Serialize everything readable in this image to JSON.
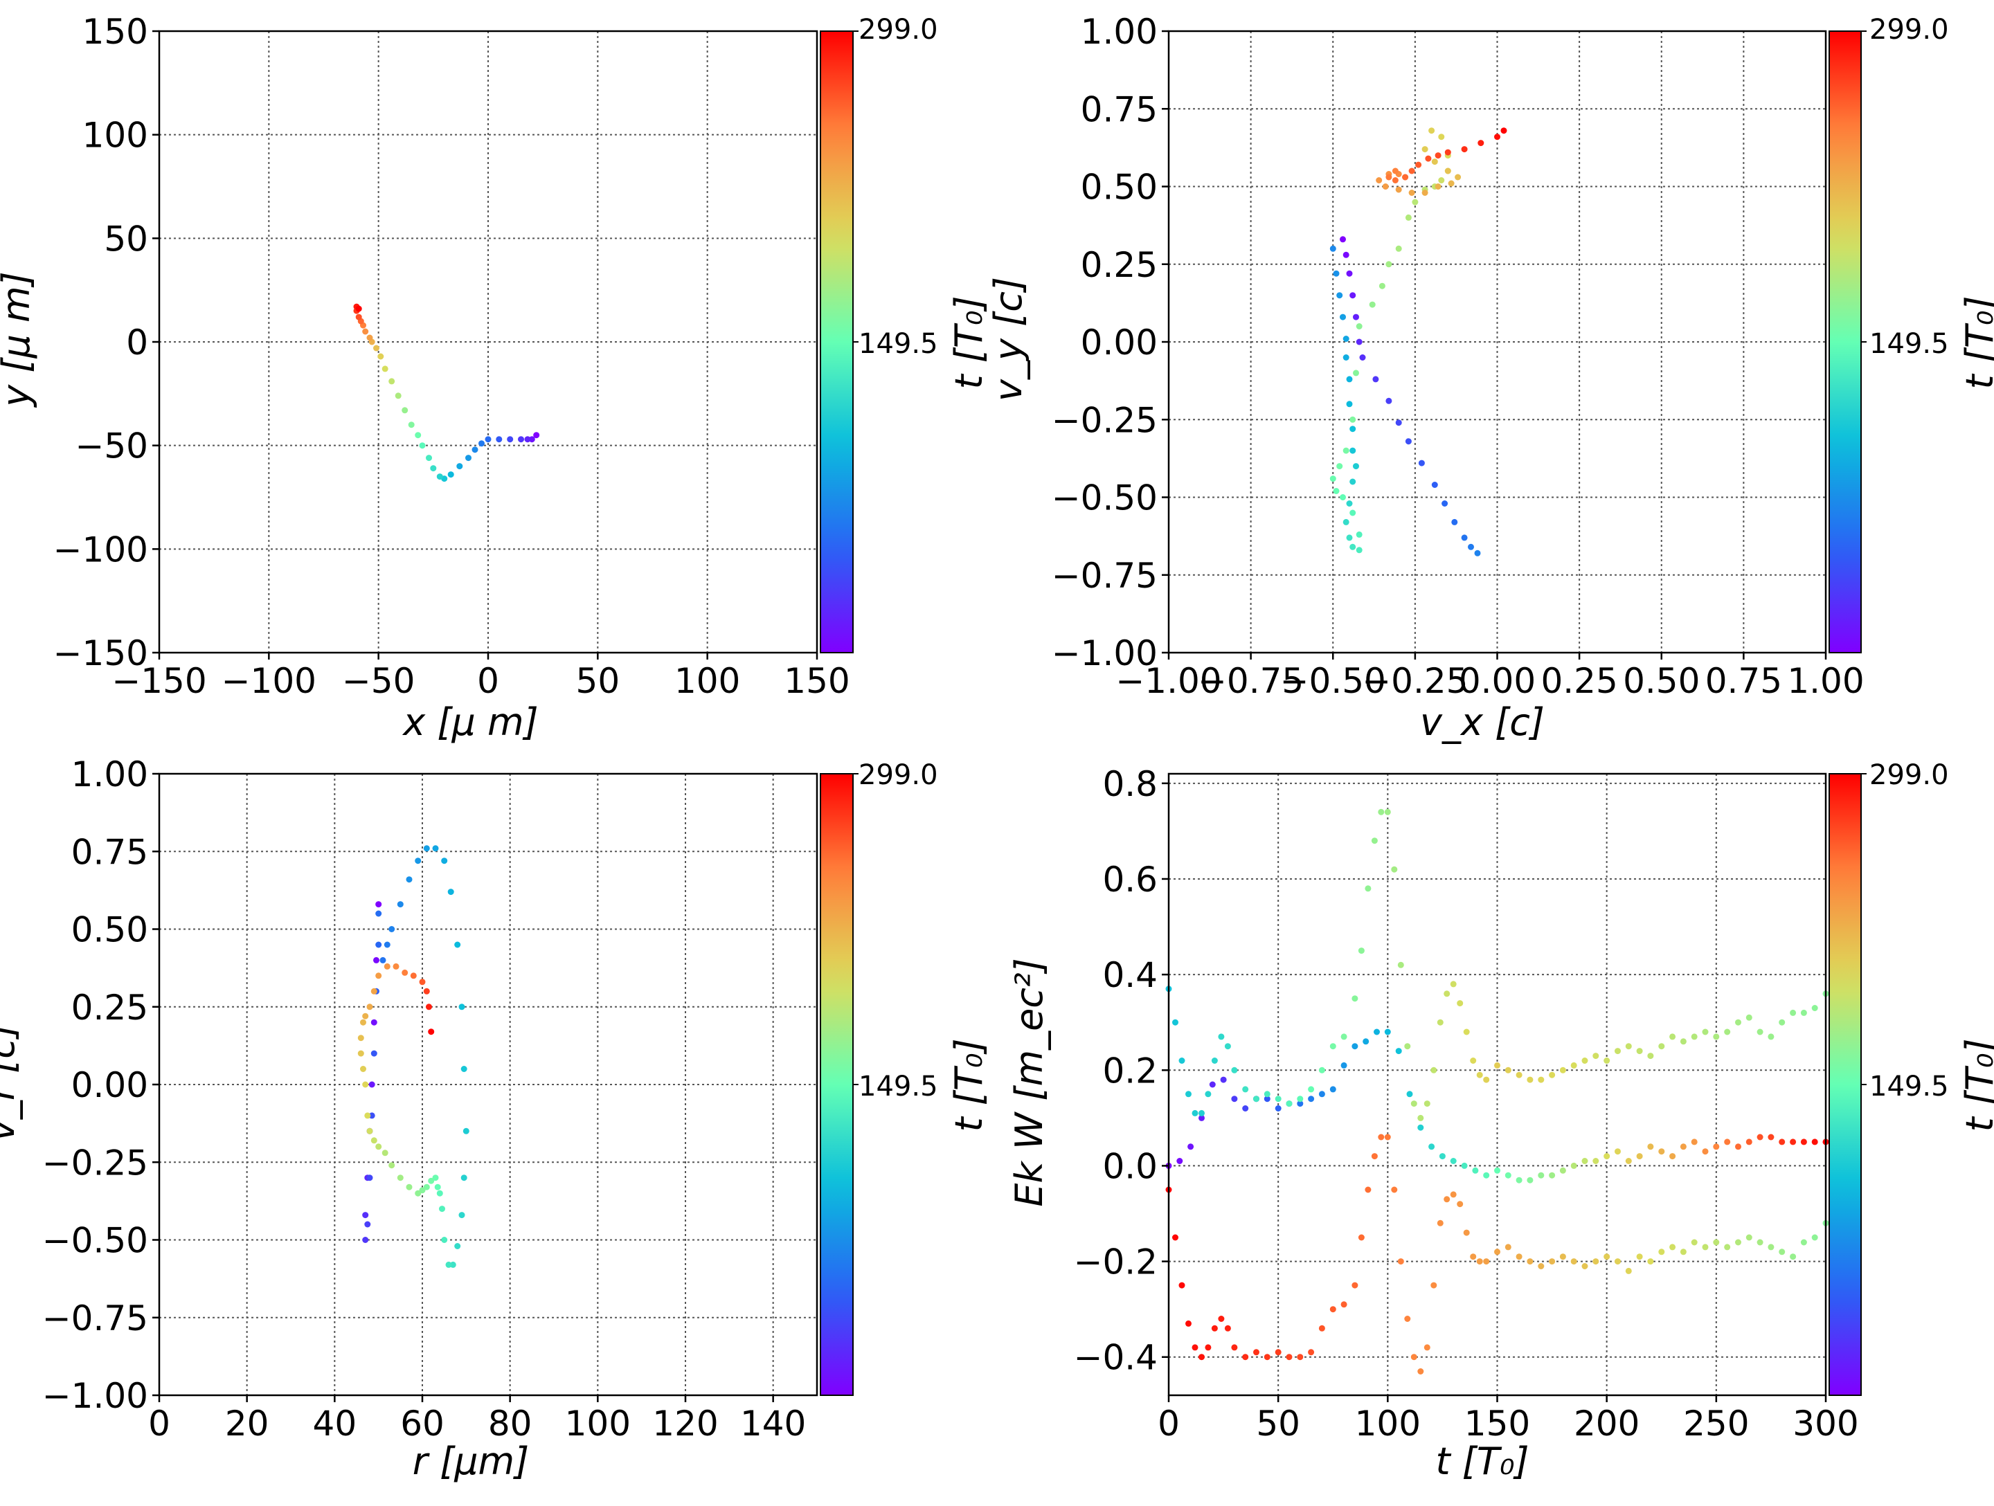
{
  "colorbar": {
    "label": "t [T₀]",
    "ticks": [
      "149.5",
      "299.0"
    ],
    "range": [
      0,
      299
    ],
    "colormap": "rainbow"
  },
  "chart_data": [
    {
      "type": "scatter",
      "xlabel": "x  [μ m]",
      "ylabel": "y  [μ m]",
      "xlim": [
        -150,
        150
      ],
      "ylim": [
        -150,
        150
      ],
      "xticks": [
        "−150",
        "−100",
        "−50",
        "0",
        "50",
        "100",
        "150"
      ],
      "yticks": [
        "−150",
        "−100",
        "−50",
        "0",
        "50",
        "100",
        "150"
      ],
      "grid": true,
      "series": [
        {
          "x": [
            22,
            20,
            18,
            15,
            10,
            5,
            0,
            -3,
            -6,
            -9,
            -13,
            -17,
            -20,
            -22,
            -25,
            -27,
            -30,
            -32,
            -35,
            -38,
            -41,
            -44,
            -47,
            -49,
            -51,
            -53,
            -54,
            -56,
            -57,
            -58,
            -59,
            -60,
            -60,
            -59
          ],
          "y": [
            -45,
            -47,
            -47,
            -47,
            -47,
            -47,
            -47,
            -49,
            -52,
            -56,
            -60,
            -64,
            -66,
            -65,
            -61,
            -56,
            -50,
            -45,
            -40,
            -33,
            -26,
            -19,
            -13,
            -7,
            -3,
            0,
            2,
            5,
            8,
            10,
            12,
            15,
            17,
            16
          ],
          "t": [
            0,
            9,
            18,
            27,
            36,
            45,
            54,
            63,
            72,
            81,
            90,
            99,
            108,
            117,
            126,
            135,
            144,
            153,
            162,
            171,
            180,
            189,
            198,
            207,
            216,
            225,
            234,
            243,
            252,
            261,
            270,
            279,
            290,
            299
          ]
        }
      ]
    },
    {
      "type": "scatter",
      "xlabel": "v_x [c]",
      "ylabel": "v_y [c]",
      "xlim": [
        -1.0,
        1.0
      ],
      "ylim": [
        -1.0,
        1.0
      ],
      "xticks": [
        "−1.00",
        "−0.75",
        "−0.50",
        "−0.25",
        "0.00",
        "0.25",
        "0.50",
        "0.75",
        "1.00"
      ],
      "yticks": [
        "−1.00",
        "−0.75",
        "−0.50",
        "−0.25",
        "0.00",
        "0.25",
        "0.50",
        "0.75",
        "1.00"
      ],
      "grid": true,
      "series": [
        {
          "x": [
            -0.47,
            -0.46,
            -0.45,
            -0.44,
            -0.43,
            -0.42,
            -0.41,
            -0.37,
            -0.33,
            -0.3,
            -0.27,
            -0.23,
            -0.19,
            -0.16,
            -0.13,
            -0.1,
            -0.08,
            -0.06,
            -0.5,
            -0.49,
            -0.48,
            -0.47,
            -0.46,
            -0.46,
            -0.45,
            -0.45,
            -0.44,
            -0.44,
            -0.43,
            -0.44,
            -0.45,
            -0.46,
            -0.45,
            -0.44,
            -0.42,
            -0.42,
            -0.44,
            -0.47,
            -0.49,
            -0.5,
            -0.48,
            -0.46,
            -0.44,
            -0.43,
            -0.42,
            -0.38,
            -0.35,
            -0.33,
            -0.3,
            -0.27,
            -0.25,
            -0.22,
            -0.19,
            -0.17,
            -0.15,
            -0.15,
            -0.17,
            -0.2,
            -0.22,
            -0.19,
            -0.15,
            -0.12,
            -0.14,
            -0.18,
            -0.22,
            -0.26,
            -0.3,
            -0.34,
            -0.36,
            -0.33,
            -0.3,
            -0.28,
            -0.31,
            -0.33,
            -0.31,
            -0.28,
            -0.26,
            -0.24,
            -0.21,
            -0.18,
            -0.15,
            -0.1,
            -0.05,
            0.0,
            0.02
          ],
          "y": [
            0.33,
            0.28,
            0.22,
            0.15,
            0.08,
            0.0,
            -0.05,
            -0.12,
            -0.19,
            -0.26,
            -0.32,
            -0.39,
            -0.46,
            -0.52,
            -0.58,
            -0.63,
            -0.66,
            -0.68,
            0.3,
            0.22,
            0.15,
            0.08,
            0.01,
            -0.05,
            -0.12,
            -0.2,
            -0.28,
            -0.35,
            -0.4,
            -0.45,
            -0.52,
            -0.58,
            -0.63,
            -0.66,
            -0.67,
            -0.62,
            -0.55,
            -0.5,
            -0.48,
            -0.44,
            -0.4,
            -0.35,
            -0.25,
            -0.1,
            0.05,
            0.12,
            0.18,
            0.25,
            0.3,
            0.4,
            0.45,
            0.49,
            0.5,
            0.52,
            0.55,
            0.6,
            0.66,
            0.68,
            0.62,
            0.58,
            0.55,
            0.53,
            0.51,
            0.5,
            0.48,
            0.48,
            0.49,
            0.5,
            0.52,
            0.54,
            0.54,
            0.53,
            0.55,
            0.53,
            0.52,
            0.53,
            0.55,
            0.57,
            0.59,
            0.6,
            0.61,
            0.62,
            0.64,
            0.66,
            0.68
          ],
          "t": [
            0,
            4,
            8,
            12,
            16,
            20,
            24,
            28,
            32,
            36,
            40,
            44,
            48,
            52,
            56,
            60,
            64,
            68,
            72,
            76,
            80,
            84,
            88,
            92,
            96,
            100,
            104,
            108,
            112,
            116,
            120,
            124,
            128,
            132,
            136,
            140,
            144,
            148,
            150,
            152,
            155,
            158,
            161,
            164,
            167,
            170,
            173,
            176,
            179,
            182,
            185,
            188,
            191,
            194,
            197,
            200,
            203,
            206,
            209,
            212,
            215,
            218,
            221,
            224,
            227,
            230,
            233,
            236,
            239,
            242,
            245,
            248,
            251,
            254,
            257,
            260,
            263,
            266,
            269,
            272,
            277,
            282,
            288,
            294,
            299
          ]
        }
      ]
    },
    {
      "type": "scatter",
      "xlabel": "r [μm]",
      "ylabel": "v_r [c]",
      "xlim": [
        0,
        150
      ],
      "ylim": [
        -1.0,
        1.0
      ],
      "xticks": [
        "0",
        "20",
        "40",
        "60",
        "80",
        "100",
        "120",
        "140"
      ],
      "yticks": [
        "−1.00",
        "−0.75",
        "−0.50",
        "−0.25",
        "0.00",
        "0.25",
        "0.50",
        "0.75",
        "1.00"
      ],
      "grid": true,
      "series": [
        {
          "x": [
            50,
            49.5,
            49,
            48.5,
            48,
            47.5,
            47,
            47,
            47.5,
            48,
            48.5,
            49,
            49.5,
            50,
            50,
            51,
            52,
            53,
            55,
            57,
            59,
            61,
            63,
            65,
            66.5,
            68,
            69,
            69.5,
            70,
            69.5,
            69,
            68,
            67,
            66,
            65,
            64.5,
            64,
            63.5,
            63,
            62,
            61,
            60,
            59,
            57,
            55,
            53,
            51.5,
            50,
            49,
            48,
            47.5,
            47,
            46.5,
            46,
            46,
            46.5,
            47,
            48,
            49,
            50,
            52,
            54,
            56,
            58,
            60,
            61,
            61.5,
            62
          ],
          "y": [
            0.58,
            0.4,
            0.2,
            0.0,
            -0.15,
            -0.3,
            -0.42,
            -0.5,
            -0.45,
            -0.3,
            -0.1,
            0.1,
            0.3,
            0.45,
            0.55,
            0.4,
            0.45,
            0.5,
            0.58,
            0.66,
            0.72,
            0.76,
            0.76,
            0.72,
            0.62,
            0.45,
            0.25,
            0.05,
            -0.15,
            -0.3,
            -0.42,
            -0.52,
            -0.58,
            -0.58,
            -0.5,
            -0.4,
            -0.35,
            -0.33,
            -0.3,
            -0.31,
            -0.33,
            -0.34,
            -0.35,
            -0.33,
            -0.3,
            -0.26,
            -0.22,
            -0.2,
            -0.18,
            -0.15,
            -0.1,
            0.0,
            0.05,
            0.1,
            0.15,
            0.2,
            0.22,
            0.25,
            0.3,
            0.35,
            0.38,
            0.38,
            0.36,
            0.35,
            0.33,
            0.3,
            0.25,
            0.17
          ],
          "t": [
            0,
            4,
            8,
            12,
            16,
            20,
            24,
            28,
            32,
            36,
            40,
            44,
            48,
            52,
            56,
            60,
            64,
            68,
            72,
            76,
            80,
            84,
            88,
            92,
            96,
            100,
            104,
            108,
            112,
            116,
            120,
            124,
            128,
            132,
            136,
            140,
            144,
            148,
            152,
            156,
            160,
            164,
            168,
            172,
            176,
            180,
            184,
            188,
            192,
            196,
            200,
            204,
            208,
            212,
            216,
            220,
            224,
            228,
            232,
            236,
            240,
            246,
            252,
            258,
            266,
            276,
            288,
            299
          ]
        }
      ]
    },
    {
      "type": "scatter",
      "xlabel": "t [T₀]",
      "ylabel": "Ek W [m_ec²]",
      "xlim": [
        0,
        300
      ],
      "ylim": [
        -0.48,
        0.82
      ],
      "xticks": [
        "0",
        "50",
        "100",
        "150",
        "200",
        "250",
        "300"
      ],
      "yticks": [
        "−0.4",
        "−0.2",
        "0.0",
        "0.2",
        "0.4",
        "0.6",
        "0.8"
      ],
      "grid": true,
      "series": [
        {
          "name": "",
          "colorMode": "direct",
          "x": [
            0,
            5,
            10,
            15,
            20,
            25,
            30,
            35,
            40,
            45,
            50,
            55,
            60,
            65,
            70,
            75,
            80,
            85,
            90,
            95,
            100,
            105,
            110,
            115,
            120,
            125,
            130,
            135,
            140,
            145,
            150,
            155,
            160,
            165,
            170,
            175,
            180,
            185,
            190,
            195,
            200,
            205,
            210,
            215,
            220,
            225,
            230,
            235,
            240,
            245,
            250,
            255,
            260,
            265,
            270,
            275,
            280,
            285,
            290,
            295,
            300
          ],
          "y": [
            0.0,
            0.01,
            0.04,
            0.1,
            0.17,
            0.18,
            0.14,
            0.12,
            0.14,
            0.14,
            0.12,
            0.13,
            0.13,
            0.14,
            0.15,
            0.16,
            0.21,
            0.25,
            0.26,
            0.28,
            0.28,
            0.24,
            0.15,
            0.08,
            0.04,
            0.02,
            0.01,
            0.0,
            -0.01,
            -0.02,
            -0.01,
            -0.02,
            -0.03,
            -0.03,
            -0.02,
            -0.02,
            -0.01,
            0.0,
            0.01,
            0.01,
            0.02,
            0.03,
            0.01,
            0.02,
            0.04,
            0.03,
            0.02,
            0.04,
            0.05,
            0.03,
            0.04,
            0.05,
            0.04,
            0.05,
            0.06,
            0.06,
            0.05,
            0.05,
            0.05,
            0.05,
            0.05
          ]
        },
        {
          "name": "",
          "colorMode": "mirror",
          "x": [
            0,
            3,
            6,
            9,
            12,
            15,
            18,
            21,
            24,
            27,
            30,
            35,
            40,
            45,
            50,
            55,
            60,
            65,
            70,
            75,
            80,
            85,
            88,
            91,
            94,
            97,
            100,
            103,
            106,
            109,
            112,
            115,
            118,
            121,
            124,
            127,
            130,
            133,
            136,
            139,
            142,
            145,
            150,
            155,
            160,
            165,
            170,
            175,
            180,
            185,
            190,
            195,
            200,
            205,
            210,
            215,
            220,
            225,
            230,
            235,
            240,
            245,
            250,
            255,
            260,
            265,
            270,
            275,
            280,
            285,
            290,
            295,
            300
          ],
          "y": [
            0.37,
            0.3,
            0.22,
            0.15,
            0.11,
            0.11,
            0.15,
            0.22,
            0.27,
            0.25,
            0.2,
            0.16,
            0.14,
            0.15,
            0.14,
            0.13,
            0.14,
            0.16,
            0.2,
            0.25,
            0.27,
            0.35,
            0.45,
            0.58,
            0.68,
            0.74,
            0.74,
            0.62,
            0.42,
            0.25,
            0.13,
            0.1,
            0.13,
            0.2,
            0.3,
            0.36,
            0.38,
            0.34,
            0.28,
            0.22,
            0.19,
            0.18,
            0.21,
            0.2,
            0.19,
            0.18,
            0.18,
            0.19,
            0.2,
            0.21,
            0.22,
            0.23,
            0.22,
            0.24,
            0.25,
            0.24,
            0.23,
            0.25,
            0.27,
            0.26,
            0.27,
            0.28,
            0.27,
            0.28,
            0.3,
            0.31,
            0.28,
            0.27,
            0.3,
            0.32,
            0.32,
            0.33,
            0.36
          ]
        },
        {
          "name": "",
          "colorMode": "offset",
          "x": [
            0,
            3,
            6,
            9,
            12,
            15,
            18,
            21,
            24,
            27,
            30,
            35,
            40,
            45,
            50,
            55,
            60,
            65,
            70,
            75,
            80,
            85,
            88,
            91,
            94,
            97,
            100,
            103,
            106,
            109,
            112,
            115,
            118,
            121,
            124,
            127,
            130,
            133,
            136,
            139,
            142,
            145,
            150,
            155,
            160,
            165,
            170,
            175,
            180,
            185,
            190,
            195,
            200,
            205,
            210,
            215,
            220,
            225,
            230,
            235,
            240,
            245,
            250,
            255,
            260,
            265,
            270,
            275,
            280,
            285,
            290,
            295,
            300
          ],
          "y": [
            -0.05,
            -0.15,
            -0.25,
            -0.33,
            -0.38,
            -0.4,
            -0.38,
            -0.34,
            -0.32,
            -0.34,
            -0.38,
            -0.4,
            -0.39,
            -0.4,
            -0.39,
            -0.4,
            -0.4,
            -0.39,
            -0.34,
            -0.3,
            -0.29,
            -0.25,
            -0.15,
            -0.05,
            0.02,
            0.06,
            0.06,
            -0.05,
            -0.2,
            -0.32,
            -0.4,
            -0.43,
            -0.38,
            -0.25,
            -0.12,
            -0.07,
            -0.06,
            -0.08,
            -0.14,
            -0.19,
            -0.2,
            -0.2,
            -0.18,
            -0.17,
            -0.19,
            -0.2,
            -0.21,
            -0.2,
            -0.19,
            -0.2,
            -0.21,
            -0.2,
            -0.19,
            -0.2,
            -0.22,
            -0.19,
            -0.2,
            -0.18,
            -0.17,
            -0.18,
            -0.16,
            -0.17,
            -0.16,
            -0.17,
            -0.16,
            -0.15,
            -0.16,
            -0.17,
            -0.18,
            -0.19,
            -0.16,
            -0.15,
            -0.12
          ]
        }
      ]
    }
  ]
}
